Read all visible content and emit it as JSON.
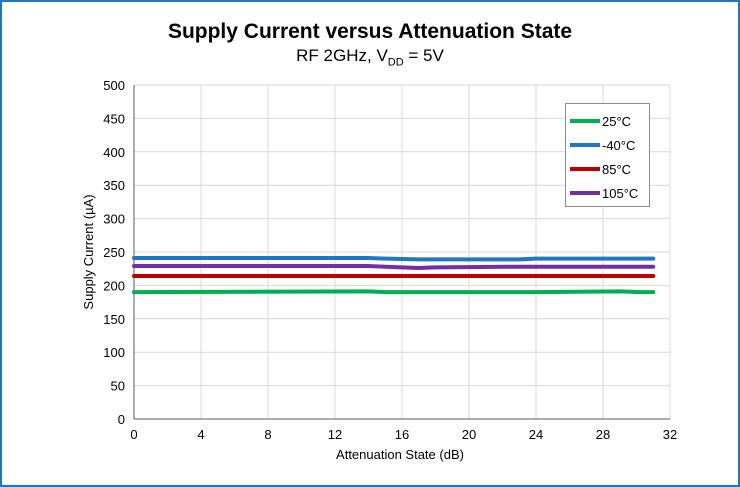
{
  "chart_data": {
    "type": "line",
    "title": "Supply Current versus Attenuation State",
    "subtitle_prefix": "RF 2GHz, V",
    "subtitle_sub": "DD",
    "subtitle_suffix": " = 5V",
    "xlabel": "Attenuation State (dB)",
    "ylabel": "Supply Current (µA)",
    "xlim": [
      0,
      32
    ],
    "ylim": [
      0,
      500
    ],
    "xticks": [
      "0",
      "4",
      "8",
      "12",
      "16",
      "20",
      "24",
      "28",
      "32"
    ],
    "yticks": [
      "0",
      "50",
      "100",
      "150",
      "200",
      "250",
      "300",
      "350",
      "400",
      "450",
      "500"
    ],
    "grid": true,
    "legend_position": "top-right",
    "x": [
      0,
      14,
      15,
      17,
      18,
      23,
      24,
      29,
      30,
      31
    ],
    "series": [
      {
        "name": "25°C",
        "color": "#00b050",
        "values": [
          190,
          191,
          190,
          190,
          190,
          190,
          190,
          191,
          190,
          190
        ]
      },
      {
        "name": "-40°C",
        "color": "#1f77c4",
        "values": [
          241,
          241,
          240,
          239,
          239,
          239,
          240,
          240,
          240,
          240
        ]
      },
      {
        "name": "85°C",
        "color": "#c00000",
        "values": [
          214,
          214,
          214,
          214,
          214,
          214,
          214,
          214,
          214,
          214
        ]
      },
      {
        "name": "105°C",
        "color": "#7030a0",
        "values": [
          229,
          229,
          228,
          226,
          227,
          228,
          228,
          228,
          228,
          228
        ]
      }
    ]
  }
}
